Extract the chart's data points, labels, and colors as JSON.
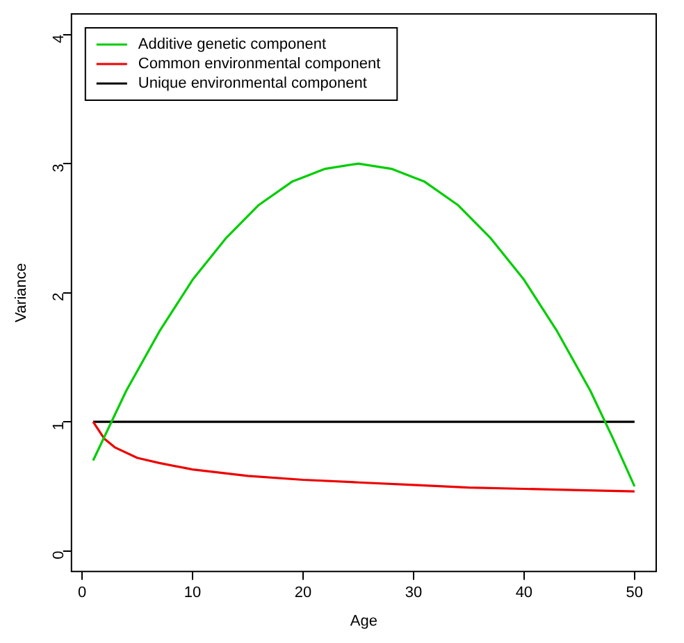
{
  "chart_data": {
    "type": "line",
    "xlabel": "Age",
    "ylabel": "Variance",
    "xlim": [
      -0.96,
      51.96
    ],
    "ylim": [
      -0.16,
      4.16
    ],
    "xticks": [
      0,
      10,
      20,
      30,
      40,
      50
    ],
    "yticks": [
      0,
      1,
      2,
      3,
      4
    ],
    "grid": false,
    "legend": "top left",
    "marker": "none",
    "line_style": "solid",
    "series": [
      {
        "name": "Additive genetic component",
        "color": "#00cd00",
        "x": [
          1,
          4,
          7,
          10,
          13,
          16,
          19,
          22,
          25,
          28,
          31,
          34,
          37,
          40,
          43,
          46,
          48,
          50
        ],
        "values": [
          0.7,
          1.24,
          1.7,
          2.1,
          2.42,
          2.68,
          2.86,
          2.96,
          3.0,
          2.96,
          2.86,
          2.68,
          2.42,
          2.1,
          1.7,
          1.24,
          0.88,
          0.5
        ]
      },
      {
        "name": "Common environmental component",
        "color": "#ee0000",
        "x": [
          1,
          2,
          3,
          5,
          7,
          10,
          15,
          20,
          25,
          30,
          35,
          40,
          45,
          50
        ],
        "values": [
          1.0,
          0.87,
          0.8,
          0.72,
          0.68,
          0.63,
          0.58,
          0.55,
          0.53,
          0.51,
          0.49,
          0.48,
          0.47,
          0.46
        ]
      },
      {
        "name": "Unique environmental component",
        "color": "#000000",
        "x": [
          1,
          50
        ],
        "values": [
          1,
          1
        ]
      }
    ]
  }
}
